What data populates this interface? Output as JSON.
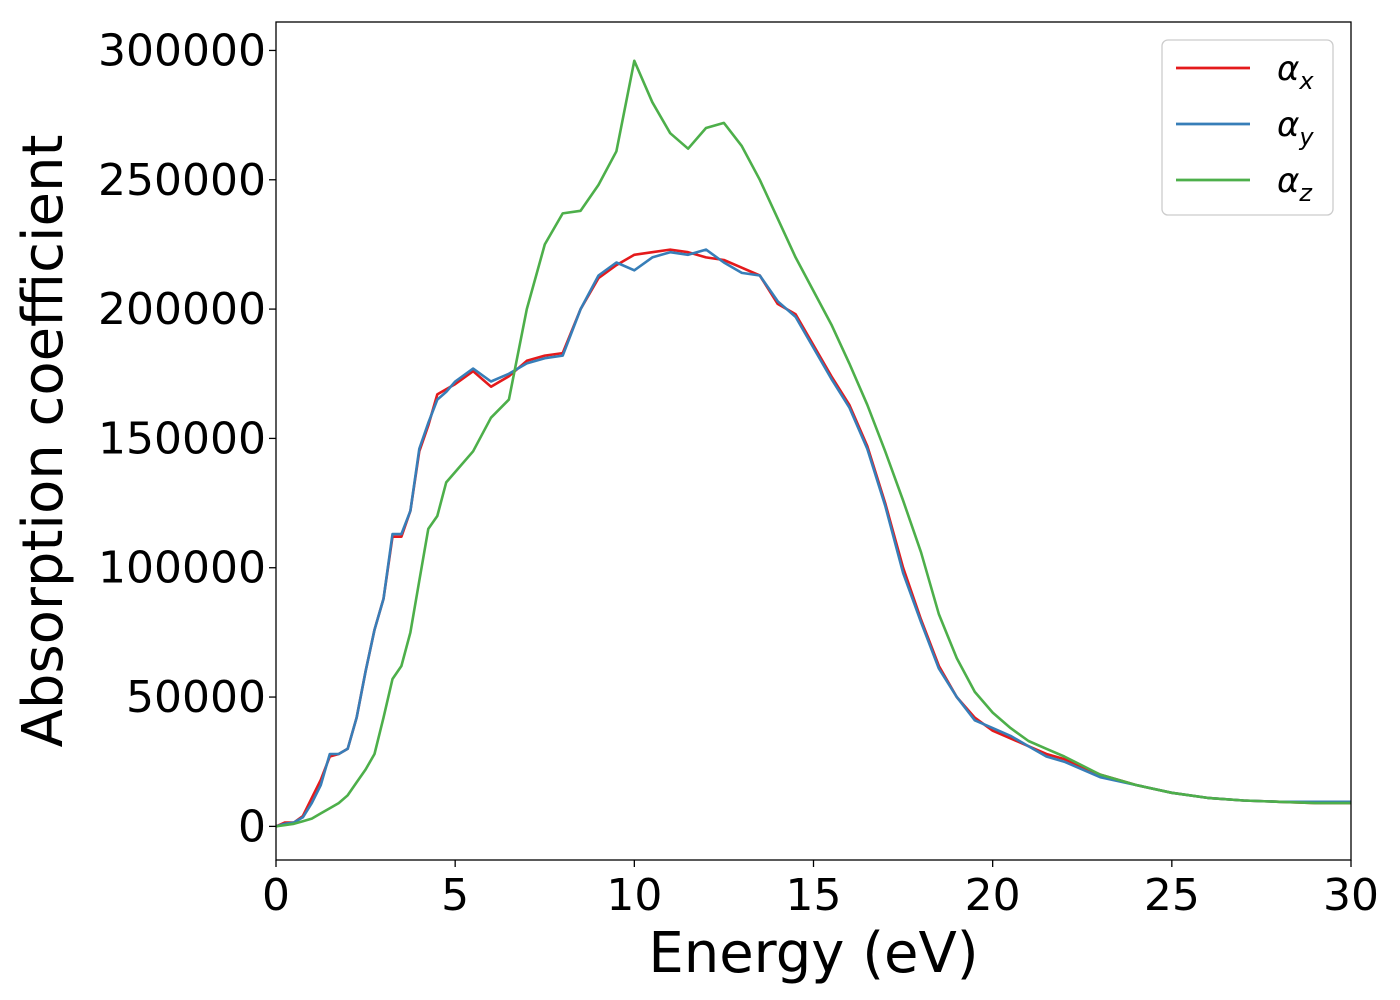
{
  "chart_data": {
    "type": "line",
    "xlabel": "Energy (eV)",
    "ylabel": "Absorption coefficient",
    "xlim": [
      0,
      30
    ],
    "ylim": [
      -13000,
      311000
    ],
    "xticks": [
      0,
      5,
      10,
      15,
      20,
      25,
      30
    ],
    "yticks": [
      0,
      50000,
      100000,
      150000,
      200000,
      250000,
      300000
    ],
    "xtick_labels": [
      "0",
      "5",
      "10",
      "15",
      "20",
      "25",
      "30"
    ],
    "ytick_labels": [
      "0",
      "50000",
      "100000",
      "150000",
      "200000",
      "250000",
      "300000"
    ],
    "grid": false,
    "legend_position": "top-right",
    "x": [
      0,
      0.25,
      0.5,
      0.75,
      1.0,
      1.25,
      1.5,
      1.75,
      2.0,
      2.25,
      2.5,
      2.75,
      3.0,
      3.25,
      3.5,
      3.75,
      4.0,
      4.25,
      4.5,
      4.75,
      5.0,
      5.5,
      6.0,
      6.5,
      7.0,
      7.5,
      8.0,
      8.5,
      9.0,
      9.5,
      10.0,
      10.5,
      11.0,
      11.5,
      12.0,
      12.5,
      13.0,
      13.5,
      14.0,
      14.5,
      15.0,
      15.5,
      16.0,
      16.5,
      17.0,
      17.5,
      18.0,
      18.5,
      19.0,
      19.5,
      20.0,
      20.5,
      21.0,
      21.5,
      22.0,
      23.0,
      24.0,
      25.0,
      26.0,
      27.0,
      28.0,
      29.0,
      30.0
    ],
    "series": [
      {
        "name": "α_x",
        "label_main": "α",
        "label_sub": "x",
        "color": "#e41a1c",
        "values": [
          0,
          1500,
          1500,
          4000,
          11000,
          18000,
          27000,
          28000,
          30000,
          42000,
          60000,
          76000,
          88000,
          112000,
          112000,
          122000,
          145000,
          155000,
          167000,
          169000,
          171000,
          176000,
          170000,
          174000,
          180000,
          182000,
          183000,
          200000,
          212000,
          217000,
          221000,
          222000,
          223000,
          222000,
          220000,
          219000,
          216000,
          213000,
          202000,
          198000,
          186000,
          174000,
          163000,
          147000,
          125000,
          100000,
          80000,
          62000,
          50000,
          42000,
          37000,
          34000,
          31000,
          28000,
          26000,
          20000,
          16000,
          13000,
          11000,
          10000,
          9500,
          9000,
          9000
        ]
      },
      {
        "name": "α_y",
        "label_main": "α",
        "label_sub": "y",
        "color": "#377eb8",
        "values": [
          0,
          1000,
          1500,
          3500,
          9000,
          16000,
          28000,
          28000,
          30000,
          42000,
          60000,
          76000,
          88000,
          113000,
          113000,
          122000,
          146000,
          156000,
          165000,
          168000,
          172000,
          177000,
          172000,
          175000,
          179000,
          181000,
          182000,
          200000,
          213000,
          218000,
          215000,
          220000,
          222000,
          221000,
          223000,
          218000,
          214000,
          213000,
          203000,
          197000,
          185000,
          173000,
          162000,
          146000,
          124000,
          98000,
          79000,
          61000,
          50000,
          41000,
          38000,
          35000,
          31000,
          27000,
          25000,
          19000,
          16000,
          13000,
          11000,
          10000,
          9500,
          9500,
          9500
        ]
      },
      {
        "name": "α_z",
        "label_main": "α",
        "label_sub": "z",
        "color": "#4daf4a",
        "values": [
          0,
          500,
          1000,
          2000,
          3000,
          5000,
          7000,
          9000,
          12000,
          17000,
          22000,
          28000,
          42000,
          57000,
          62000,
          75000,
          95000,
          115000,
          120000,
          133000,
          137000,
          145000,
          158000,
          165000,
          200000,
          225000,
          237000,
          238000,
          248000,
          261000,
          296000,
          280000,
          268000,
          262000,
          270000,
          272000,
          263000,
          250000,
          235000,
          220000,
          207000,
          194000,
          179000,
          163000,
          145000,
          126000,
          106000,
          82000,
          65000,
          52000,
          44000,
          38000,
          33000,
          30000,
          27000,
          20000,
          16000,
          13000,
          11000,
          10000,
          9500,
          9000,
          9000
        ]
      }
    ]
  }
}
